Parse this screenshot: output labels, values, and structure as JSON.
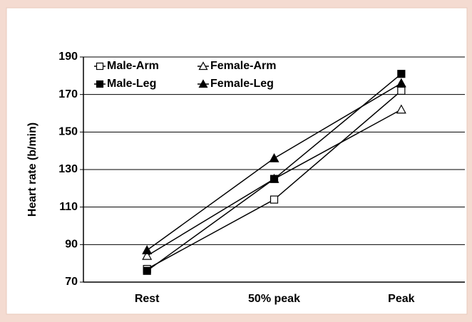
{
  "chart_data": {
    "type": "line",
    "ylabel": "Heart rate (b/min)",
    "categories": [
      "Rest",
      "50% peak",
      "Peak"
    ],
    "series": [
      {
        "name": "Male-Arm",
        "color": "#000000",
        "marker": "square-open",
        "values": [
          77,
          114,
          172
        ]
      },
      {
        "name": "Female-Arm",
        "color": "#000000",
        "marker": "triangle-open",
        "values": [
          84,
          125,
          162
        ]
      },
      {
        "name": "Male-Leg",
        "color": "#000000",
        "marker": "square",
        "values": [
          76,
          125,
          181
        ]
      },
      {
        "name": "Female-Leg",
        "color": "#000000",
        "marker": "triangle",
        "values": [
          87,
          136,
          176
        ]
      }
    ],
    "ylim": [
      70,
      190
    ],
    "yticks": [
      70,
      90,
      110,
      130,
      150,
      170,
      190
    ],
    "grid": true,
    "legend": "upper left"
  }
}
